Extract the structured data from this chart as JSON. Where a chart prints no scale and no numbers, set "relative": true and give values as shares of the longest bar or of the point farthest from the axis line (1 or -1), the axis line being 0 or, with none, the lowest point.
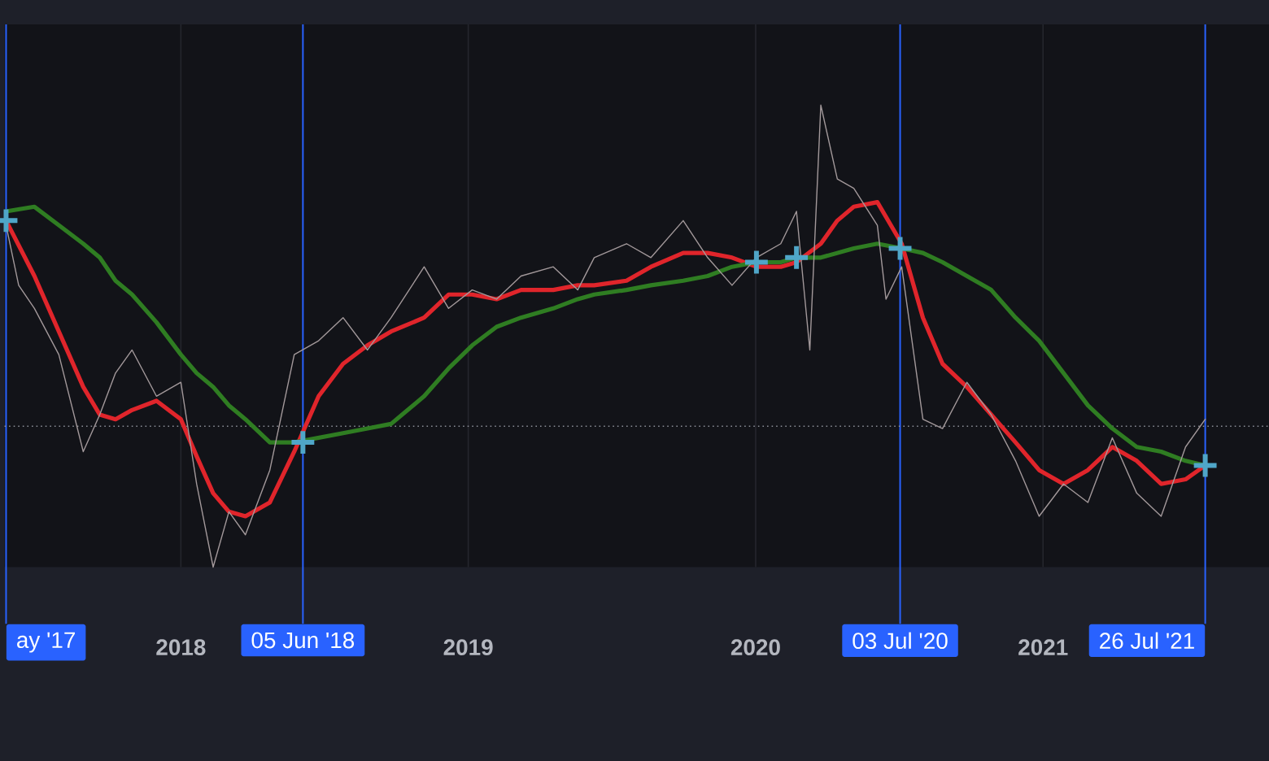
{
  "chart_data": {
    "type": "line",
    "relative": true,
    "tick_labels": "x",
    "grid": "x",
    "xlim": [
      "2017-05-22",
      "2021-10-15"
    ],
    "xticks": [
      {
        "value": "2018-01-01",
        "label": "2018"
      },
      {
        "value": "2019-01-01",
        "label": "2019"
      },
      {
        "value": "2020-01-01",
        "label": "2020"
      },
      {
        "value": "2021-01-01",
        "label": "2021"
      }
    ],
    "x": [
      "2017-05-24",
      "2017-06-29",
      "2017-07-30",
      "2017-08-30",
      "2017-09-20",
      "2017-10-10",
      "2017-10-31",
      "2017-12-01",
      "2018-01-01",
      "2018-01-21",
      "2018-02-11",
      "2018-03-03",
      "2018-03-24",
      "2018-04-24",
      "2018-05-25",
      "2018-06-25",
      "2018-07-26",
      "2018-08-26",
      "2018-09-25",
      "2018-11-06",
      "2018-12-07",
      "2019-01-06",
      "2019-02-06",
      "2019-03-09",
      "2019-04-19",
      "2019-05-20",
      "2019-06-10",
      "2019-07-21",
      "2019-08-21",
      "2019-10-01",
      "2019-11-01",
      "2019-12-02",
      "2020-01-02",
      "2020-02-02",
      "2020-02-22",
      "2020-03-24",
      "2020-04-14",
      "2020-05-05",
      "2020-06-04",
      "2020-07-05",
      "2020-08-01",
      "2020-08-26",
      "2020-09-26",
      "2020-10-27",
      "2020-11-27",
      "2020-12-27",
      "2021-01-27",
      "2021-02-27",
      "2021-03-30",
      "2021-04-30",
      "2021-05-31",
      "2021-07-01",
      "2021-07-26"
    ],
    "series": [
      {
        "color": "#a3999b",
        "x": [
          "2017-05-24",
          "2017-06-09",
          "2017-06-29",
          "2017-07-30",
          "2017-08-30",
          "2017-09-20",
          "2017-10-10",
          "2017-10-31",
          "2017-12-01",
          "2018-01-01",
          "2018-01-21",
          "2018-02-11",
          "2018-03-03",
          "2018-03-24",
          "2018-04-24",
          "2018-05-25",
          "2018-06-25",
          "2018-07-26",
          "2018-08-26",
          "2018-09-25",
          "2018-11-06",
          "2018-12-07",
          "2019-01-06",
          "2019-02-06",
          "2019-03-09",
          "2019-04-19",
          "2019-05-20",
          "2019-06-10",
          "2019-07-21",
          "2019-08-21",
          "2019-10-01",
          "2019-11-01",
          "2019-12-02",
          "2020-01-02",
          "2020-02-02",
          "2020-02-22",
          "2020-03-10",
          "2020-03-24",
          "2020-04-14",
          "2020-05-05",
          "2020-06-04",
          "2020-06-15",
          "2020-07-05",
          "2020-08-01",
          "2020-08-26",
          "2020-09-26",
          "2020-10-27",
          "2020-11-27",
          "2020-12-27",
          "2021-01-27",
          "2021-02-27",
          "2021-03-30",
          "2021-04-30",
          "2021-05-31",
          "2021-07-01",
          "2021-07-26"
        ],
        "values": [
          0.74,
          0.61,
          0.56,
          0.46,
          0.25,
          0.33,
          0.42,
          0.47,
          0.37,
          0.4,
          0.18,
          0.0,
          0.12,
          0.07,
          0.21,
          0.46,
          0.49,
          0.54,
          0.47,
          0.54,
          0.65,
          0.56,
          0.6,
          0.58,
          0.63,
          0.65,
          0.6,
          0.67,
          0.7,
          0.67,
          0.75,
          0.67,
          0.61,
          0.67,
          0.7,
          0.77,
          0.47,
          1.0,
          0.84,
          0.82,
          0.74,
          0.58,
          0.65,
          0.32,
          0.3,
          0.4,
          0.33,
          0.23,
          0.11,
          0.18,
          0.14,
          0.28,
          0.16,
          0.11,
          0.26,
          0.32
        ]
      },
      {
        "color": "#e0252b",
        "values": [
          0.75,
          0.63,
          0.51,
          0.39,
          0.33,
          0.32,
          0.34,
          0.36,
          0.32,
          0.24,
          0.16,
          0.12,
          0.11,
          0.14,
          0.25,
          0.37,
          0.44,
          0.48,
          0.51,
          0.54,
          0.59,
          0.59,
          0.58,
          0.6,
          0.6,
          0.61,
          0.61,
          0.62,
          0.65,
          0.68,
          0.68,
          0.67,
          0.65,
          0.65,
          0.66,
          0.7,
          0.75,
          0.78,
          0.79,
          0.7,
          0.54,
          0.44,
          0.39,
          0.33,
          0.27,
          0.21,
          0.18,
          0.21,
          0.26,
          0.23,
          0.18,
          0.19,
          0.22
        ]
      },
      {
        "color": "#2f7d22",
        "values": [
          0.77,
          0.78,
          0.74,
          0.7,
          0.67,
          0.62,
          0.59,
          0.53,
          0.46,
          0.42,
          0.39,
          0.35,
          0.32,
          0.27,
          0.27,
          0.28,
          0.29,
          0.3,
          0.31,
          0.37,
          0.43,
          0.48,
          0.52,
          0.54,
          0.56,
          0.58,
          0.59,
          0.6,
          0.61,
          0.62,
          0.63,
          0.65,
          0.66,
          0.66,
          0.67,
          0.67,
          0.68,
          0.69,
          0.7,
          0.69,
          0.68,
          0.66,
          0.63,
          0.6,
          0.54,
          0.49,
          0.42,
          0.35,
          0.3,
          0.26,
          0.25,
          0.23,
          0.22
        ]
      },
      {
        "type": "scatter",
        "marker": "cross",
        "color": "#4fa6c8",
        "x": [
          "2017-05-24",
          "2018-06-05",
          "2020-01-02",
          "2020-02-22",
          "2020-07-03",
          "2021-07-26"
        ],
        "values": [
          0.75,
          0.27,
          0.66,
          0.67,
          0.69,
          0.22
        ]
      }
    ],
    "ref_lines": [
      {
        "axis": "x",
        "value": "2017-05-24",
        "label": "ay '17",
        "color": "#2962ff"
      },
      {
        "axis": "x",
        "value": "2018-06-05",
        "label": "05 Jun '18",
        "color": "#2962ff"
      },
      {
        "axis": "x",
        "value": "2020-07-03",
        "label": "03 Jul '20",
        "color": "#2962ff"
      },
      {
        "axis": "x",
        "value": "2021-07-26",
        "label": "26 Jul '21",
        "color": "#2962ff"
      },
      {
        "axis": "y",
        "value": 0.305,
        "color": "#8a8d96",
        "line_style": "dotted"
      }
    ]
  }
}
